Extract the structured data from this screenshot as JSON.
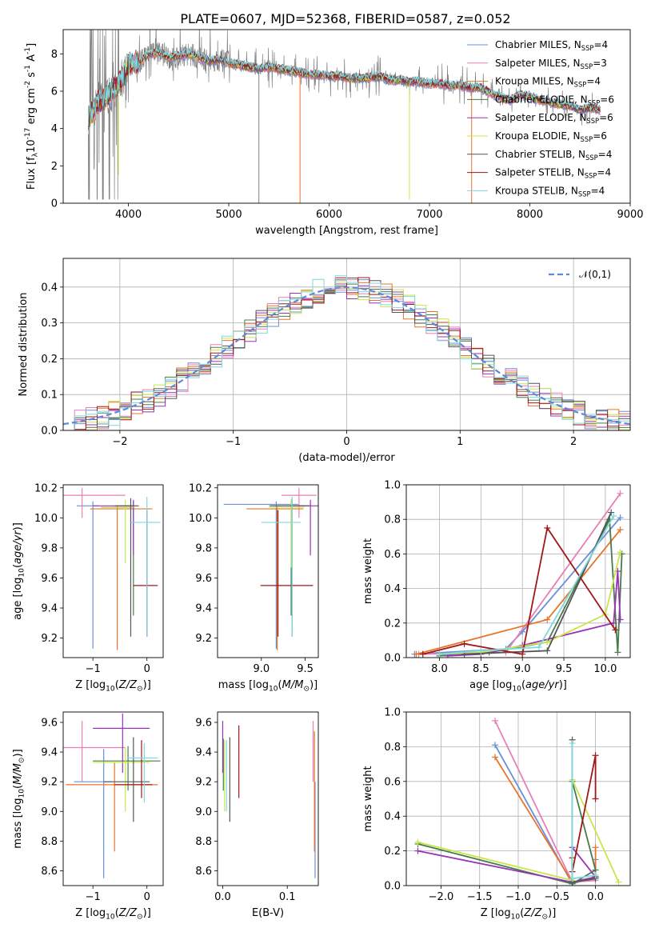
{
  "figure_title": "PLATE=0607, MJD=52368, FIBERID=0587, z=0.052",
  "colors": {
    "Chabrier MILES": "#6a8fd8",
    "Salpeter MILES": "#e87fb6",
    "Kroupa MILES": "#e8742a",
    "Chabrier ELODIE": "#4a7a4a",
    "Salpeter ELODIE": "#9a32b8",
    "Kroupa ELODIE": "#c8e64a",
    "Chabrier STELIB": "#555555",
    "Salpeter STELIB": "#a01818",
    "Kroupa STELIB": "#7fd8e0"
  },
  "chart_data": [
    {
      "id": "spectrum",
      "type": "line",
      "title": "PLATE=0607, MJD=52368, FIBERID=0587, z=0.052",
      "xlabel": "wavelength [Angstrom, rest frame]",
      "ylabel": "Flux [f$_\\lambda$10$^{-17}$ erg cm$^{-2}$ s$^{-1}$ A$^{-1}$]",
      "xlim": [
        3350,
        9000
      ],
      "ylim": [
        0,
        9.3
      ],
      "xticks": [
        4000,
        5000,
        6000,
        7000,
        8000,
        9000
      ],
      "yticks": [
        0,
        2,
        4,
        6,
        8
      ],
      "legend": "top-right",
      "series": [
        {
          "name": "Chabrier MILES, N$_{SSP}$=4"
        },
        {
          "name": "Salpeter MILES, N$_{SSP}$=3"
        },
        {
          "name": "Kroupa MILES, N$_{SSP}$=4"
        },
        {
          "name": "Chabrier ELODIE, N$_{SSP}$=6"
        },
        {
          "name": "Salpeter ELODIE, N$_{SSP}$=6"
        },
        {
          "name": "Kroupa ELODIE, N$_{SSP}$=6"
        },
        {
          "name": "Chabrier STELIB, N$_{SSP}$=4"
        },
        {
          "name": "Salpeter STELIB, N$_{SSP}$=4"
        },
        {
          "name": "Kroupa STELIB, N$_{SSP}$=4"
        }
      ],
      "data_x": [
        3600,
        3650,
        3700,
        3750,
        3800,
        3850,
        3900,
        3950,
        4000,
        4050,
        4100,
        4150,
        4200,
        4300,
        4400,
        4500,
        4600,
        4700,
        4800,
        4900,
        5000,
        5100,
        5200,
        5300,
        5400,
        5500,
        5600,
        5700,
        5800,
        5900,
        6000,
        6100,
        6200,
        6300,
        6400,
        6500,
        6600,
        6700,
        6800,
        6900,
        7000,
        7100,
        7200,
        7300,
        7400,
        7500,
        7600,
        7700,
        7800,
        7900,
        8000,
        8100,
        8200,
        8300,
        8400,
        8500,
        8600,
        8700
      ],
      "data_model": [
        4.6,
        5.0,
        5.4,
        5.5,
        5.8,
        6.0,
        6.3,
        6.8,
        7.4,
        7.6,
        7.5,
        7.7,
        8.0,
        8.1,
        7.8,
        7.9,
        8.0,
        7.8,
        7.6,
        7.7,
        7.5,
        7.4,
        7.3,
        7.2,
        7.3,
        7.2,
        7.1,
        7.0,
        6.9,
        6.9,
        6.8,
        6.8,
        6.7,
        6.7,
        6.7,
        6.8,
        6.6,
        6.6,
        6.5,
        6.5,
        6.4,
        6.4,
        6.3,
        6.3,
        6.2,
        6.2,
        5.9,
        5.7,
        5.5,
        5.8,
        5.7,
        5.5,
        5.4,
        5.3,
        5.2,
        5.0,
        5.1,
        5.0
      ]
    },
    {
      "id": "residuals",
      "type": "line",
      "xlabel": "(data-model)/error",
      "ylabel": "Normed distribution",
      "xlim": [
        -2.5,
        2.5
      ],
      "ylim": [
        0,
        0.48
      ],
      "xticks": [
        -2,
        -1,
        0,
        1,
        2
      ],
      "yticks": [
        0.0,
        0.1,
        0.2,
        0.3,
        0.4
      ],
      "grid": true,
      "legend": "top-right",
      "reference": {
        "name": "$\\mathcal{N}(0,1)$",
        "style": "dashed"
      },
      "bin_edges": [
        -2.5,
        -2.4,
        -2.3,
        -2.2,
        -2.1,
        -2.0,
        -1.9,
        -1.8,
        -1.7,
        -1.6,
        -1.5,
        -1.4,
        -1.3,
        -1.2,
        -1.1,
        -1.0,
        -0.9,
        -0.8,
        -0.7,
        -0.6,
        -0.5,
        -0.4,
        -0.3,
        -0.2,
        -0.1,
        0.0,
        0.1,
        0.2,
        0.3,
        0.4,
        0.5,
        0.6,
        0.7,
        0.8,
        0.9,
        1.0,
        1.1,
        1.2,
        1.3,
        1.4,
        1.5,
        1.6,
        1.7,
        1.8,
        1.9,
        2.0,
        2.1,
        2.2,
        2.3,
        2.4,
        2.5
      ]
    },
    {
      "id": "age-vs-Z",
      "type": "scatter",
      "xlabel": "Z [log$_{10}$($Z/Z_\\odot$)]",
      "ylabel": "age  [log$_{10}$($age/yr$)]",
      "xlim": [
        -1.55,
        0.3
      ],
      "ylim": [
        9.07,
        10.22
      ],
      "xticks": [
        -1,
        0
      ],
      "yticks": [
        9.2,
        9.4,
        9.6,
        9.8,
        10.0,
        10.2
      ],
      "points": [
        {
          "model": "Chabrier MILES",
          "x": -1.0,
          "xerr": [
            0.3,
            0.1
          ],
          "y": 10.08,
          "yerr": [
            0.95,
            0.03
          ]
        },
        {
          "model": "Salpeter MILES",
          "x": -1.2,
          "xerr": [
            0.4,
            0.8
          ],
          "y": 10.15,
          "yerr": [
            0.15,
            0.05
          ]
        },
        {
          "model": "Kroupa MILES",
          "x": -0.55,
          "xerr": [
            0.5,
            0.65
          ],
          "y": 10.06,
          "yerr": [
            0.94,
            0.02
          ]
        },
        {
          "model": "Chabrier ELODIE",
          "x": -0.25,
          "xerr": [
            0.6,
            0.0
          ],
          "y": 10.07,
          "yerr": [
            0.72,
            0.04
          ]
        },
        {
          "model": "Salpeter ELODIE",
          "x": -0.25,
          "xerr": [
            0.75,
            0.0
          ],
          "y": 10.08,
          "yerr": [
            0.33,
            0.04
          ]
        },
        {
          "model": "Kroupa ELODIE",
          "x": -0.4,
          "xerr": [
            0.45,
            0.15
          ],
          "y": 10.07,
          "yerr": [
            0.37,
            0.05
          ]
        },
        {
          "model": "Chabrier STELIB",
          "x": -0.3,
          "xerr": [
            0.3,
            0.15
          ],
          "y": 10.08,
          "yerr": [
            0.87,
            0.05
          ]
        },
        {
          "model": "Salpeter STELIB",
          "x": 0.0,
          "xerr": [
            0.25,
            0.2
          ],
          "y": 9.55,
          "yerr": [
            0.34,
            0.5
          ]
        },
        {
          "model": "Kroupa STELIB",
          "x": 0.0,
          "xerr": [
            0.3,
            0.25
          ],
          "y": 9.97,
          "yerr": [
            0.76,
            0.17
          ]
        }
      ]
    },
    {
      "id": "age-vs-mass",
      "type": "scatter",
      "xlabel": "mass [log$_{10}$($M/M_\\odot$)]",
      "ylabel": "",
      "xlim": [
        8.5,
        9.65
      ],
      "ylim": [
        9.07,
        10.22
      ],
      "xticks": [
        9.0,
        9.5
      ],
      "yticks": [
        9.2,
        9.4,
        9.6,
        9.8,
        10.0,
        10.2
      ],
      "points": [
        {
          "model": "Chabrier MILES",
          "x": 9.17,
          "xerr": [
            0.6,
            0.25
          ],
          "y": 10.09,
          "yerr": [
            0.96,
            0.02
          ]
        },
        {
          "model": "Salpeter MILES",
          "x": 9.43,
          "xerr": [
            0.2,
            0.2
          ],
          "y": 10.15,
          "yerr": [
            0.15,
            0.05
          ]
        },
        {
          "model": "Kroupa MILES",
          "x": 9.18,
          "xerr": [
            0.35,
            0.3
          ],
          "y": 10.06,
          "yerr": [
            0.94,
            0.02
          ]
        },
        {
          "model": "Chabrier ELODIE",
          "x": 9.34,
          "xerr": [
            0.25,
            0.15
          ],
          "y": 10.08,
          "yerr": [
            0.73,
            0.04
          ]
        },
        {
          "model": "Salpeter ELODIE",
          "x": 9.56,
          "xerr": [
            0.2,
            0.1
          ],
          "y": 10.08,
          "yerr": [
            0.33,
            0.04
          ]
        },
        {
          "model": "Kroupa ELODIE",
          "x": 9.34,
          "xerr": [
            0.25,
            0.15
          ],
          "y": 10.07,
          "yerr": [
            0.4,
            0.05
          ]
        },
        {
          "model": "Chabrier STELIB",
          "x": 9.35,
          "xerr": [
            0.25,
            0.2
          ],
          "y": 10.08,
          "yerr": [
            0.87,
            0.05
          ]
        },
        {
          "model": "Salpeter STELIB",
          "x": 9.19,
          "xerr": [
            0.2,
            0.4
          ],
          "y": 9.55,
          "yerr": [
            0.34,
            0.5
          ]
        },
        {
          "model": "Kroupa STELIB",
          "x": 9.35,
          "xerr": [
            0.35,
            0.1
          ],
          "y": 9.97,
          "yerr": [
            0.76,
            0.17
          ]
        }
      ]
    },
    {
      "id": "mass-weight-vs-age",
      "type": "line",
      "xlabel": "age  [log$_{10}$($age/yr$)]",
      "ylabel": "mass weight",
      "xlim": [
        7.6,
        10.3
      ],
      "ylim": [
        0,
        1.0
      ],
      "xticks": [
        8.0,
        8.5,
        9.0,
        9.5,
        10.0
      ],
      "yticks": [
        0.0,
        0.2,
        0.4,
        0.6,
        0.8,
        1.0
      ],
      "grid": true,
      "series": [
        {
          "model": "Chabrier MILES",
          "x": [
            7.7,
            8.8,
            9.0,
            10.18
          ],
          "y": [
            0.02,
            0.05,
            0.15,
            0.81
          ]
        },
        {
          "model": "Salpeter MILES",
          "x": [
            7.75,
            8.8,
            10.18
          ],
          "y": [
            0.02,
            0.03,
            0.95
          ]
        },
        {
          "model": "Kroupa MILES",
          "x": [
            7.72,
            9.3,
            10.18
          ],
          "y": [
            0.02,
            0.22,
            0.74
          ]
        },
        {
          "model": "Chabrier ELODIE",
          "x": [
            8.0,
            8.6,
            9.3,
            10.05,
            10.15,
            10.2
          ],
          "y": [
            0.01,
            0.03,
            0.09,
            0.8,
            0.03,
            0.6
          ]
        },
        {
          "model": "Salpeter ELODIE",
          "x": [
            8.1,
            8.5,
            9.0,
            10.1,
            10.15,
            10.18
          ],
          "y": [
            0.01,
            0.02,
            0.07,
            0.2,
            0.5,
            0.22
          ]
        },
        {
          "model": "Kroupa ELODIE",
          "x": [
            8.0,
            8.5,
            9.3,
            10.0,
            10.18
          ],
          "y": [
            0.02,
            0.03,
            0.09,
            0.25,
            0.61
          ]
        },
        {
          "model": "Chabrier STELIB",
          "x": [
            8.3,
            9.3,
            10.07
          ],
          "y": [
            0.02,
            0.04,
            0.84
          ]
        },
        {
          "model": "Salpeter STELIB",
          "x": [
            7.8,
            8.3,
            9.0,
            9.3,
            10.12
          ],
          "y": [
            0.02,
            0.08,
            0.02,
            0.75,
            0.16
          ]
        },
        {
          "model": "Kroupa STELIB",
          "x": [
            8.0,
            8.5,
            9.2,
            10.1
          ],
          "y": [
            0.02,
            0.04,
            0.06,
            0.82
          ]
        }
      ]
    },
    {
      "id": "mass-vs-Z",
      "type": "scatter",
      "xlabel": "Z [log$_{10}$($Z/Z_\\odot$)]",
      "ylabel": "mass [log$_{10}$($M/M_\\odot$)]",
      "xlim": [
        -1.55,
        0.3
      ],
      "ylim": [
        8.5,
        9.67
      ],
      "xticks": [
        -1,
        0
      ],
      "yticks": [
        8.6,
        8.8,
        9.0,
        9.2,
        9.4,
        9.6
      ],
      "points": [
        {
          "model": "Chabrier MILES",
          "x": -0.8,
          "xerr": [
            0.55,
            0.15
          ],
          "y": 9.2,
          "yerr": [
            0.65,
            0.22
          ]
        },
        {
          "model": "Salpeter MILES",
          "x": -1.2,
          "xerr": [
            0.35,
            0.8
          ],
          "y": 9.43,
          "yerr": [
            0.23,
            0.18
          ]
        },
        {
          "model": "Kroupa MILES",
          "x": -0.6,
          "xerr": [
            0.9,
            0.8
          ],
          "y": 9.18,
          "yerr": [
            0.45,
            0.15
          ]
        },
        {
          "model": "Chabrier ELODIE",
          "x": -0.35,
          "xerr": [
            0.65,
            0.6
          ],
          "y": 9.34,
          "yerr": [
            0.2,
            0.1
          ]
        },
        {
          "model": "Salpeter ELODIE",
          "x": -0.45,
          "xerr": [
            0.55,
            0.5
          ],
          "y": 9.56,
          "yerr": [
            0.3,
            0.1
          ]
        },
        {
          "model": "Kroupa ELODIE",
          "x": -0.4,
          "xerr": [
            0.6,
            0.45
          ],
          "y": 9.33,
          "yerr": [
            0.33,
            0.1
          ]
        },
        {
          "model": "Chabrier STELIB",
          "x": -0.25,
          "xerr": [
            0.55,
            0.3
          ],
          "y": 9.2,
          "yerr": [
            0.27,
            0.3
          ]
        },
        {
          "model": "Salpeter STELIB",
          "x": -0.1,
          "xerr": [
            0.5,
            0.2
          ],
          "y": 9.18,
          "yerr": [
            0.09,
            0.3
          ]
        },
        {
          "model": "Kroupa STELIB",
          "x": -0.05,
          "xerr": [
            0.3,
            0.25
          ],
          "y": 9.36,
          "yerr": [
            0.3,
            0.1
          ]
        }
      ]
    },
    {
      "id": "mass-vs-EBV",
      "type": "scatter",
      "xlabel": "E(B-V)",
      "ylabel": "",
      "xlim": [
        -0.008,
        0.148
      ],
      "ylim": [
        8.5,
        9.67
      ],
      "xticks": [
        0.0,
        0.1
      ],
      "yticks": [
        8.6,
        8.8,
        9.0,
        9.2,
        9.4,
        9.6
      ],
      "points": [
        {
          "model": "Chabrier MILES",
          "x": 0.143,
          "y": 9.2,
          "yerr": [
            0.65,
            0.0
          ]
        },
        {
          "model": "Salpeter MILES",
          "x": 0.14,
          "y": 9.43,
          "yerr": [
            0.23,
            0.18
          ]
        },
        {
          "model": "Kroupa MILES",
          "x": 0.142,
          "y": 9.18,
          "yerr": [
            0.45,
            0.36
          ]
        },
        {
          "model": "Chabrier ELODIE",
          "x": 0.001,
          "y": 9.34,
          "yerr": [
            0.2,
            0.15
          ]
        },
        {
          "model": "Salpeter ELODIE",
          "x": 0.0,
          "y": 9.56,
          "yerr": [
            0.3,
            0.05
          ]
        },
        {
          "model": "Kroupa ELODIE",
          "x": 0.003,
          "y": 9.33,
          "yerr": [
            0.33,
            0.15
          ]
        },
        {
          "model": "Chabrier STELIB",
          "x": 0.011,
          "y": 9.2,
          "yerr": [
            0.27,
            0.3
          ]
        },
        {
          "model": "Salpeter STELIB",
          "x": 0.025,
          "y": 9.32,
          "yerr": [
            0.23,
            0.26
          ]
        },
        {
          "model": "Kroupa STELIB",
          "x": 0.006,
          "y": 9.2,
          "yerr": [
            0.2,
            0.28
          ]
        }
      ]
    },
    {
      "id": "mass-weight-vs-Z",
      "type": "line",
      "xlabel": "Z [log$_{10}$($Z/Z_\\odot$)]",
      "ylabel": "mass weight",
      "xlim": [
        -2.45,
        0.45
      ],
      "ylim": [
        0,
        1.0
      ],
      "xticks": [
        -2.0,
        -1.5,
        -1.0,
        -0.5,
        0.0
      ],
      "yticks": [
        0.0,
        0.2,
        0.4,
        0.6,
        0.8,
        1.0
      ],
      "grid": true,
      "series": [
        {
          "model": "Chabrier MILES",
          "x": [
            -1.3,
            -0.3,
            0.0,
            0.0
          ],
          "y": [
            0.81,
            0.01,
            0.05,
            0.15
          ]
        },
        {
          "model": "Salpeter MILES",
          "x": [
            -1.3,
            -0.3,
            0.0
          ],
          "y": [
            0.95,
            0.02,
            0.03
          ]
        },
        {
          "model": "Kroupa MILES",
          "x": [
            -1.3,
            -0.3,
            0.0,
            0.0
          ],
          "y": [
            0.74,
            0.02,
            0.05,
            0.22
          ]
        },
        {
          "model": "Chabrier ELODIE",
          "x": [
            -2.3,
            -0.3,
            0.0,
            -0.3
          ],
          "y": [
            0.24,
            0.01,
            0.09,
            0.6
          ]
        },
        {
          "model": "Salpeter ELODIE",
          "x": [
            -2.3,
            -0.3,
            0.0,
            -0.3
          ],
          "y": [
            0.2,
            0.02,
            0.05,
            0.22
          ]
        },
        {
          "model": "Kroupa ELODIE",
          "x": [
            -2.3,
            -0.3,
            -0.3,
            0.3
          ],
          "y": [
            0.25,
            0.03,
            0.61,
            0.02
          ]
        },
        {
          "model": "Chabrier STELIB",
          "x": [
            -0.3,
            -0.3,
            0.0,
            0.0
          ],
          "y": [
            0.84,
            0.02,
            0.04,
            0.05
          ]
        },
        {
          "model": "Salpeter STELIB",
          "x": [
            -0.3,
            -0.3,
            0.0,
            0.0
          ],
          "y": [
            0.16,
            0.08,
            0.75,
            0.5
          ]
        },
        {
          "model": "Kroupa STELIB",
          "x": [
            -0.3,
            -0.3,
            0.0
          ],
          "y": [
            0.82,
            0.04,
            0.06
          ]
        }
      ]
    }
  ]
}
